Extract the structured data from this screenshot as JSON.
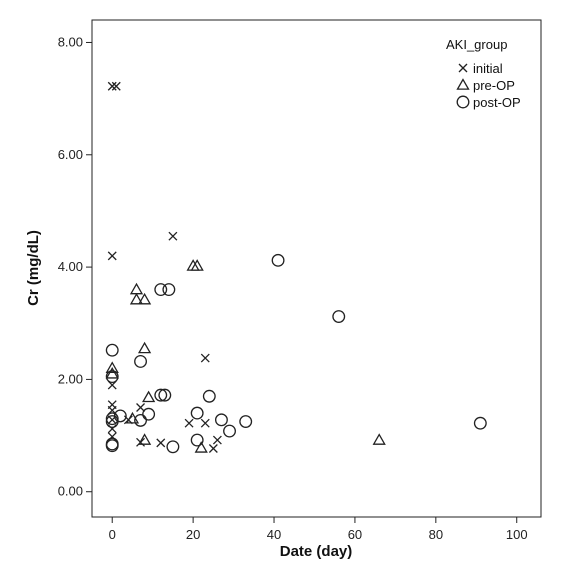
{
  "chart_data": {
    "type": "scatter",
    "title": "",
    "xlabel": "Date (day)",
    "ylabel": "Cr (mg/dL)",
    "xlim": [
      -5,
      106
    ],
    "ylim": [
      -0.45,
      8.4
    ],
    "xticks": [
      "0",
      "20",
      "40",
      "60",
      "80",
      "100"
    ],
    "yticks": [
      "0.00",
      "2.00",
      "4.00",
      "6.00",
      "8.00"
    ],
    "grid": false,
    "legend": {
      "title": "AKI_group",
      "position": "top-right"
    },
    "series": [
      {
        "name": "initial",
        "marker": "x",
        "points": [
          [
            0,
            7.22
          ],
          [
            1,
            7.22
          ],
          [
            0,
            4.2
          ],
          [
            0,
            1.9
          ],
          [
            0,
            1.55
          ],
          [
            0,
            1.45
          ],
          [
            0,
            1.28
          ],
          [
            0,
            1.12
          ],
          [
            0,
            0.98
          ],
          [
            4,
            1.28
          ],
          [
            7,
            1.5
          ],
          [
            7,
            0.88
          ],
          [
            12,
            0.87
          ],
          [
            15,
            4.55
          ],
          [
            19,
            1.22
          ],
          [
            23,
            2.38
          ],
          [
            23,
            1.22
          ],
          [
            25,
            0.77
          ],
          [
            26,
            0.92
          ]
        ]
      },
      {
        "name": "pre-OP",
        "marker": "triangle",
        "points": [
          [
            0,
            2.2
          ],
          [
            0,
            2.1
          ],
          [
            5,
            1.3
          ],
          [
            6,
            3.6
          ],
          [
            6,
            3.42
          ],
          [
            8,
            3.42
          ],
          [
            8,
            2.55
          ],
          [
            8,
            0.92
          ],
          [
            9,
            1.68
          ],
          [
            20,
            4.02
          ],
          [
            21,
            4.02
          ],
          [
            22,
            0.78
          ],
          [
            66,
            0.92
          ]
        ]
      },
      {
        "name": "post-OP",
        "marker": "circle",
        "points": [
          [
            0,
            2.52
          ],
          [
            0,
            2.05
          ],
          [
            0,
            1.3
          ],
          [
            0,
            1.25
          ],
          [
            0,
            0.85
          ],
          [
            0,
            0.82
          ],
          [
            2,
            1.35
          ],
          [
            7,
            2.32
          ],
          [
            7,
            1.27
          ],
          [
            9,
            1.38
          ],
          [
            12,
            3.6
          ],
          [
            12,
            1.72
          ],
          [
            13,
            1.72
          ],
          [
            14,
            3.6
          ],
          [
            15,
            0.8
          ],
          [
            21,
            1.4
          ],
          [
            21,
            0.92
          ],
          [
            24,
            1.7
          ],
          [
            27,
            1.28
          ],
          [
            29,
            1.08
          ],
          [
            33,
            1.25
          ],
          [
            41,
            4.12
          ],
          [
            56,
            3.12
          ],
          [
            91,
            1.22
          ]
        ]
      }
    ]
  }
}
